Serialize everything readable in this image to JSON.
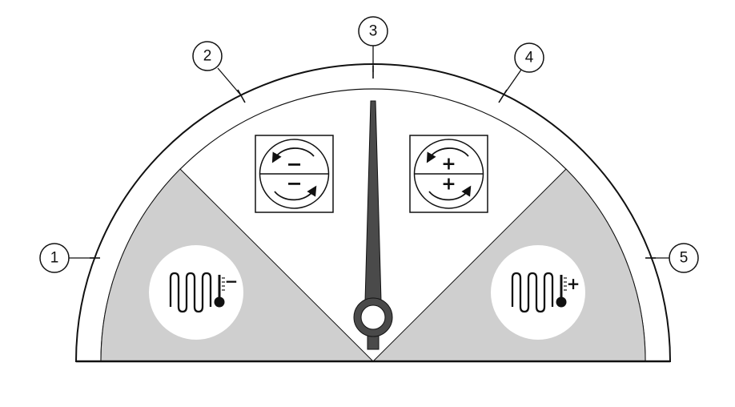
{
  "callouts": [
    {
      "label": "1"
    },
    {
      "label": "2"
    },
    {
      "label": "3"
    },
    {
      "label": "4"
    },
    {
      "label": "5"
    }
  ],
  "adjust_buttons": {
    "decrease": {
      "top_sign": "−",
      "bottom_sign": "−",
      "icon": "rotate-decrease-icon"
    },
    "increase": {
      "top_sign": "+",
      "bottom_sign": "+",
      "icon": "rotate-increase-icon"
    }
  },
  "heat_symbols": {
    "left": {
      "sign": "−",
      "icon": "heater-temperature-decrease-icon"
    },
    "right": {
      "sign": "+",
      "icon": "heater-temperature-increase-icon"
    }
  },
  "colors": {
    "line": "#111111",
    "zone_fill": "#cfcfcf",
    "face_fill": "#ffffff",
    "needle_fill": "#4a4a4a"
  }
}
